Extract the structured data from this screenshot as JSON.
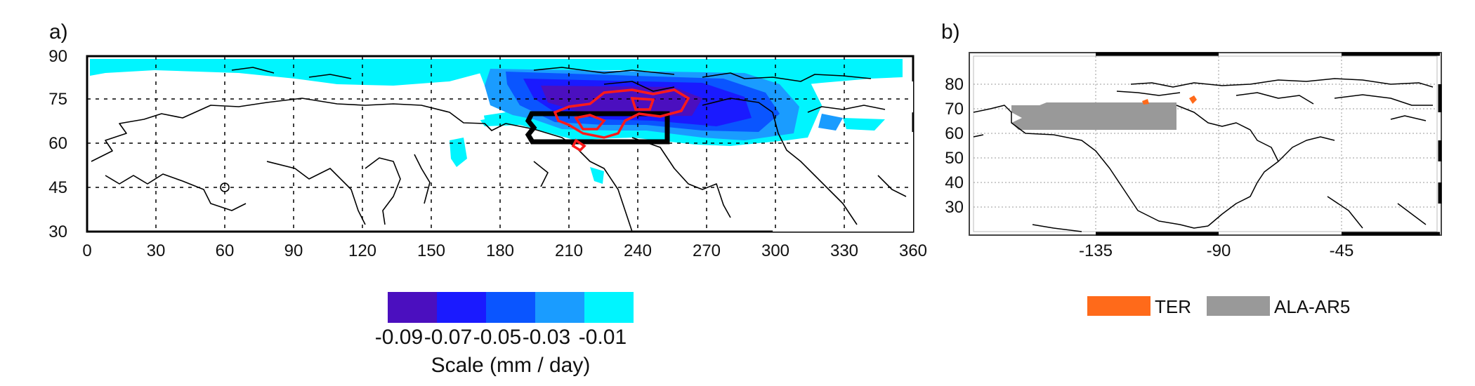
{
  "panel_a": {
    "label": "a)",
    "lat_ticks": [
      "90",
      "75",
      "60",
      "45",
      "30"
    ],
    "lon_ticks": [
      "0",
      "30",
      "60",
      "90",
      "120",
      "150",
      "180",
      "210",
      "240",
      "270",
      "300",
      "330",
      "360"
    ],
    "colorbar": {
      "colors": [
        "#4b0fbf",
        "#1a1aff",
        "#0a55ff",
        "#1a9cff",
        "#00f5ff"
      ],
      "tick_labels": [
        "-0.09",
        "-0.07",
        "-0.05",
        "-0.03",
        "-0.01"
      ],
      "title": "Scale (mm / day)"
    }
  },
  "panel_b": {
    "label": "b)",
    "lat_ticks": [
      "80",
      "70",
      "60",
      "50",
      "40",
      "30"
    ],
    "lon_ticks": [
      "-135",
      "-90",
      "-45"
    ],
    "legend": [
      {
        "label": "TER",
        "color": "#ff6a1a"
      },
      {
        "label": "ALA-AR5",
        "color": "#999999"
      }
    ]
  }
}
